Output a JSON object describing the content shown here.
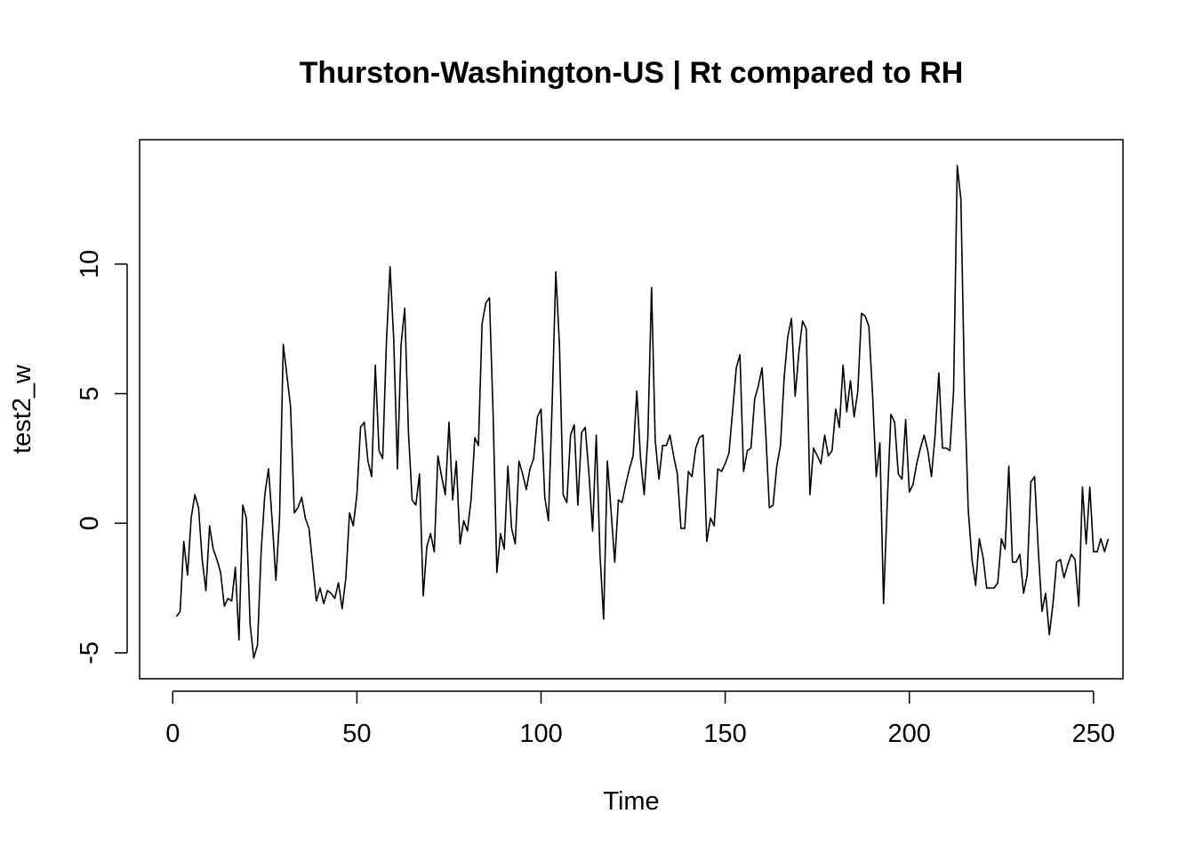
{
  "chart_data": {
    "type": "line",
    "title": "Thurston-Washington-US | Rt compared to RH",
    "xlabel": "Time",
    "ylabel": "test2_w",
    "xlim": [
      -9,
      258
    ],
    "ylim": [
      -6,
      14.8
    ],
    "x_ticks": [
      0,
      50,
      100,
      150,
      200,
      250
    ],
    "y_ticks": [
      -5,
      0,
      5,
      10
    ],
    "x_tick_labels": [
      "0",
      "50",
      "100",
      "150",
      "200",
      "250"
    ],
    "y_tick_labels": [
      "-5",
      "0",
      "5",
      "10"
    ],
    "grid": false,
    "legend": "none",
    "line_color": "#000000",
    "x_start": 1,
    "series": [
      {
        "values": [
          -3.6,
          -3.4,
          -0.7,
          -2.0,
          0.2,
          1.1,
          0.6,
          -1.4,
          -2.6,
          -0.1,
          -1.0,
          -1.4,
          -1.9,
          -3.2,
          -2.9,
          -3.0,
          -1.7,
          -4.5,
          0.7,
          0.2,
          -3.9,
          -5.2,
          -4.7,
          -1.1,
          1.1,
          2.1,
          0.1,
          -2.2,
          0.2,
          6.9,
          5.7,
          4.5,
          0.4,
          0.6,
          1.0,
          0.2,
          -0.2,
          -1.6,
          -3.0,
          -2.5,
          -3.1,
          -2.6,
          -2.7,
          -2.9,
          -2.3,
          -3.3,
          -2.1,
          0.4,
          -0.1,
          1.1,
          3.7,
          3.9,
          2.4,
          1.8,
          6.1,
          2.8,
          2.5,
          6.9,
          9.9,
          7.1,
          2.1,
          6.9,
          8.3,
          3.5,
          0.9,
          0.7,
          1.9,
          -2.8,
          -0.9,
          -0.4,
          -1.1,
          2.6,
          1.8,
          1.1,
          3.9,
          0.9,
          2.4,
          -0.8,
          0.1,
          -0.3,
          0.9,
          3.3,
          3.0,
          7.7,
          8.5,
          8.7,
          4.1,
          -1.9,
          -0.4,
          -1.0,
          2.2,
          -0.2,
          -0.8,
          2.4,
          1.9,
          1.3,
          2.1,
          2.5,
          4.1,
          4.4,
          1.0,
          0.1,
          4.5,
          9.7,
          6.9,
          1.1,
          0.8,
          3.4,
          3.8,
          0.7,
          3.5,
          3.7,
          1.9,
          -0.3,
          3.4,
          -1.2,
          -3.7,
          2.4,
          0.5,
          -1.5,
          0.9,
          0.8,
          1.5,
          2.1,
          2.6,
          5.1,
          2.5,
          1.1,
          3.3,
          9.1,
          3.2,
          1.7,
          3.0,
          3.0,
          3.4,
          2.6,
          1.9,
          -0.2,
          -0.2,
          2.0,
          1.8,
          2.9,
          3.3,
          3.4,
          -0.7,
          0.2,
          -0.1,
          2.1,
          2.0,
          2.3,
          2.7,
          4.3,
          6.0,
          6.5,
          2.0,
          2.8,
          2.9,
          4.8,
          5.3,
          6.0,
          3.5,
          0.6,
          0.7,
          2.2,
          3.0,
          5.6,
          7.2,
          7.9,
          4.9,
          6.6,
          7.8,
          7.5,
          1.1,
          2.9,
          2.6,
          2.3,
          3.4,
          2.6,
          2.8,
          4.4,
          3.7,
          6.1,
          4.3,
          5.5,
          4.1,
          5.1,
          8.1,
          8.0,
          7.6,
          5.0,
          1.8,
          3.1,
          -3.1,
          0.8,
          4.2,
          3.9,
          1.9,
          1.7,
          4.0,
          1.2,
          1.5,
          2.3,
          2.9,
          3.4,
          2.8,
          1.8,
          3.4,
          5.8,
          2.9,
          2.9,
          2.8,
          5.1,
          13.8,
          12.5,
          5.0,
          0.5,
          -1.4,
          -2.4,
          -0.6,
          -1.3,
          -2.5,
          -2.5,
          -2.5,
          -2.3,
          -0.6,
          -1.0,
          2.2,
          -1.5,
          -1.5,
          -1.2,
          -2.7,
          -2.0,
          1.6,
          1.8,
          -1.0,
          -3.4,
          -2.7,
          -4.3,
          -3.1,
          -1.5,
          -1.4,
          -2.1,
          -1.6,
          -1.2,
          -1.4,
          -3.2,
          1.4,
          -0.8,
          1.4,
          -1.1,
          -1.1,
          -0.6,
          -1.1,
          -0.6
        ]
      }
    ]
  }
}
